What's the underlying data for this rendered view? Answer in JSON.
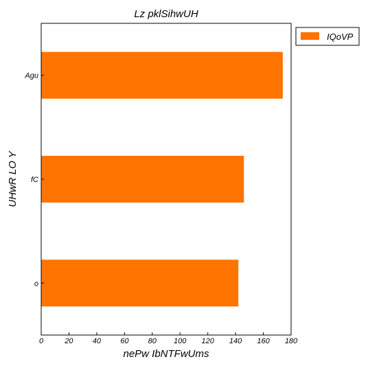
{
  "chart_data": {
    "type": "bar",
    "orientation": "horizontal",
    "title": "Lz pklSihwUH",
    "xlabel": "nePw IbNTFwUms",
    "ylabel": "UHwR LO Y",
    "categories": [
      "o",
      "fC",
      "Agu"
    ],
    "series": [
      {
        "name": "IQoVP",
        "values": [
          142,
          146,
          174
        ]
      }
    ],
    "xlim": [
      0,
      180
    ],
    "xticks": [
      0,
      20,
      40,
      60,
      80,
      100,
      120,
      140,
      160,
      180
    ],
    "grid": false,
    "legend_position": "outside-top-right"
  },
  "colors": {
    "bar": "#ff7300",
    "axis": "#000000",
    "background": "#ffffff"
  }
}
